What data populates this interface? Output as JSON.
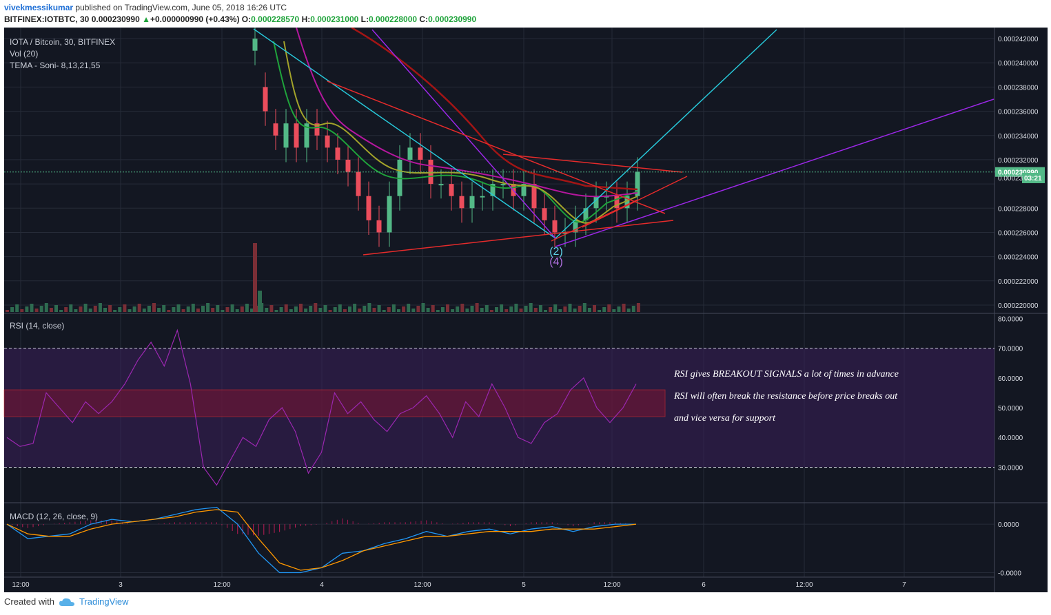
{
  "header": {
    "author": "vivekmessikumar",
    "published": "published on TradingView.com, June 05, 2018 16:26 UTC",
    "symbol": "BITFINEX:IOTBTC, 30",
    "last": "0.000230990",
    "change": "+0.000000990 (+0.43%)",
    "o_label": "O:",
    "o": "0.000228570",
    "h_label": "H:",
    "h": "0.000231000",
    "l_label": "L:",
    "l": "0.000228000",
    "c_label": "C:",
    "c": "0.000230990"
  },
  "panes": {
    "main_title": "IOTA / Bitcoin, 30, BITFINEX",
    "vol_title": "Vol (20)",
    "tema_title": "TEMA - Soni- 8,13,21,55",
    "rsi_title": "RSI (14, close)",
    "macd_title": "MACD (12, 26, close, 9)"
  },
  "price_badge": "0.000230990",
  "price_partial": "0.00023",
  "countdown": "03:21",
  "wave_labels": [
    "(2)",
    "(4)"
  ],
  "annotations": [
    "RSI gives BREAKOUT SIGNALS  a lot of times in advance",
    " RSI will often break the resistance before price breaks out",
    "and vice versa for support"
  ],
  "footer": {
    "created_with": "Created with",
    "brand": "TradingView"
  },
  "colors": {
    "background": "#131722",
    "up": "#53b987",
    "down": "#eb4d5c",
    "rsi": "#9b27b0",
    "macd": "#2196f3",
    "signal": "#ff9800"
  },
  "chart_data": [
    {
      "type": "candlestick",
      "title": "IOTA / Bitcoin, 30, BITFINEX",
      "x_tick_labels": [
        "12:00",
        "3",
        "12:00",
        "4",
        "12:00",
        "5",
        "12:00",
        "6",
        "12:00",
        "7"
      ],
      "y_tick_labels": [
        "0.000242000",
        "0.000240000",
        "0.000238000",
        "0.000236000",
        "0.000234000",
        "0.000232000",
        "0.000230990",
        "0.000228000",
        "0.000226000",
        "0.000224000",
        "0.000222000",
        "0.000220000"
      ],
      "y_ticks": [
        0.000242,
        0.00024,
        0.000238,
        0.000236,
        0.000234,
        0.000232,
        0.00023,
        0.000228,
        0.000226,
        0.000224,
        0.000222,
        0.00022
      ],
      "ylim": [
        0.0002196,
        0.0002428
      ],
      "last_price": 0.00023099,
      "grid": true,
      "series": [
        {
          "name": "Close",
          "values": [
            0.000242,
            0.000236,
            0.000234,
            0.000235,
            0.000233,
            0.000235,
            0.000234,
            0.000233,
            0.000232,
            0.000231,
            0.000229,
            0.000227,
            0.000226,
            0.000229,
            0.000232,
            0.000233,
            0.000232,
            0.00023,
            0.00023,
            0.000229,
            0.000228,
            0.000229,
            0.000229,
            0.00023,
            0.00023,
            0.000229,
            0.00023,
            0.000228,
            0.000227,
            0.000226,
            0.000226,
            0.000227,
            0.000228,
            0.000229,
            0.000229,
            0.000228,
            0.000229,
            0.000231
          ]
        },
        {
          "name": "Open",
          "values": [
            0.000241,
            0.000238,
            0.000235,
            0.000233,
            0.000235,
            0.000233,
            0.000235,
            0.000234,
            0.000233,
            0.000232,
            0.000231,
            0.000229,
            0.000227,
            0.000226,
            0.000229,
            0.000232,
            0.000233,
            0.000232,
            0.00023,
            0.00023,
            0.000229,
            0.000228,
            0.000229,
            0.000229,
            0.00023,
            0.00023,
            0.000229,
            0.00023,
            0.000228,
            0.000227,
            0.000226,
            0.000226,
            0.000227,
            0.000228,
            0.000229,
            0.000229,
            0.000228,
            0.000229
          ]
        }
      ]
    },
    {
      "type": "line",
      "title": "RSI (14, close)",
      "y_tick_labels": [
        "80.0000",
        "70.0000",
        "60.0000",
        "50.0000",
        "40.0000",
        "30.0000"
      ],
      "y_ticks": [
        80,
        70,
        60,
        50,
        40,
        30
      ],
      "ylim": [
        19,
        81
      ],
      "bands": [
        30,
        70
      ],
      "zone": [
        47,
        56
      ],
      "series": [
        {
          "name": "RSI",
          "values": [
            40,
            37,
            38,
            55,
            50,
            45,
            52,
            48,
            52,
            58,
            66,
            72,
            64,
            76,
            58,
            30,
            24,
            32,
            40,
            37,
            46,
            50,
            42,
            28,
            35,
            55,
            48,
            52,
            46,
            42,
            48,
            50,
            54,
            48,
            40,
            52,
            47,
            58,
            50,
            40,
            38,
            45,
            48,
            56,
            60,
            50,
            45,
            50,
            58
          ]
        }
      ]
    },
    {
      "type": "line",
      "title": "MACD (12, 26, close, 9)",
      "y_tick_labels": [
        "0.0000",
        "-0.0000"
      ],
      "y_ticks": [
        0,
        -2e-07
      ],
      "ylim": [
        -2.1e-07,
        8e-08
      ],
      "series": [
        {
          "name": "MACD",
          "values": [
            0,
            -6e-08,
            -5e-08,
            -4e-08,
            0,
            2e-08,
            1e-08,
            2e-08,
            4e-08,
            6e-08,
            7e-08,
            0,
            -1.2e-07,
            -2e-07,
            -2e-07,
            -1.8e-07,
            -1.2e-07,
            -1.1e-07,
            -8e-08,
            -6e-08,
            -3e-08,
            -5e-08,
            -3e-08,
            -2e-08,
            -4e-08,
            -2e-08,
            -1e-08,
            -3e-08,
            -1e-08,
            0,
            0
          ]
        },
        {
          "name": "Signal",
          "values": [
            0,
            -4e-08,
            -5e-08,
            -5e-08,
            -2e-08,
            0,
            1e-08,
            2e-08,
            3e-08,
            5e-08,
            6e-08,
            5e-08,
            -6e-08,
            -1.6e-07,
            -1.9e-07,
            -1.8e-07,
            -1.5e-07,
            -1.1e-07,
            -9e-08,
            -7e-08,
            -5e-08,
            -5e-08,
            -4e-08,
            -3e-08,
            -3e-08,
            -3e-08,
            -2e-08,
            -2e-08,
            -2e-08,
            -1e-08,
            0
          ]
        }
      ]
    }
  ]
}
